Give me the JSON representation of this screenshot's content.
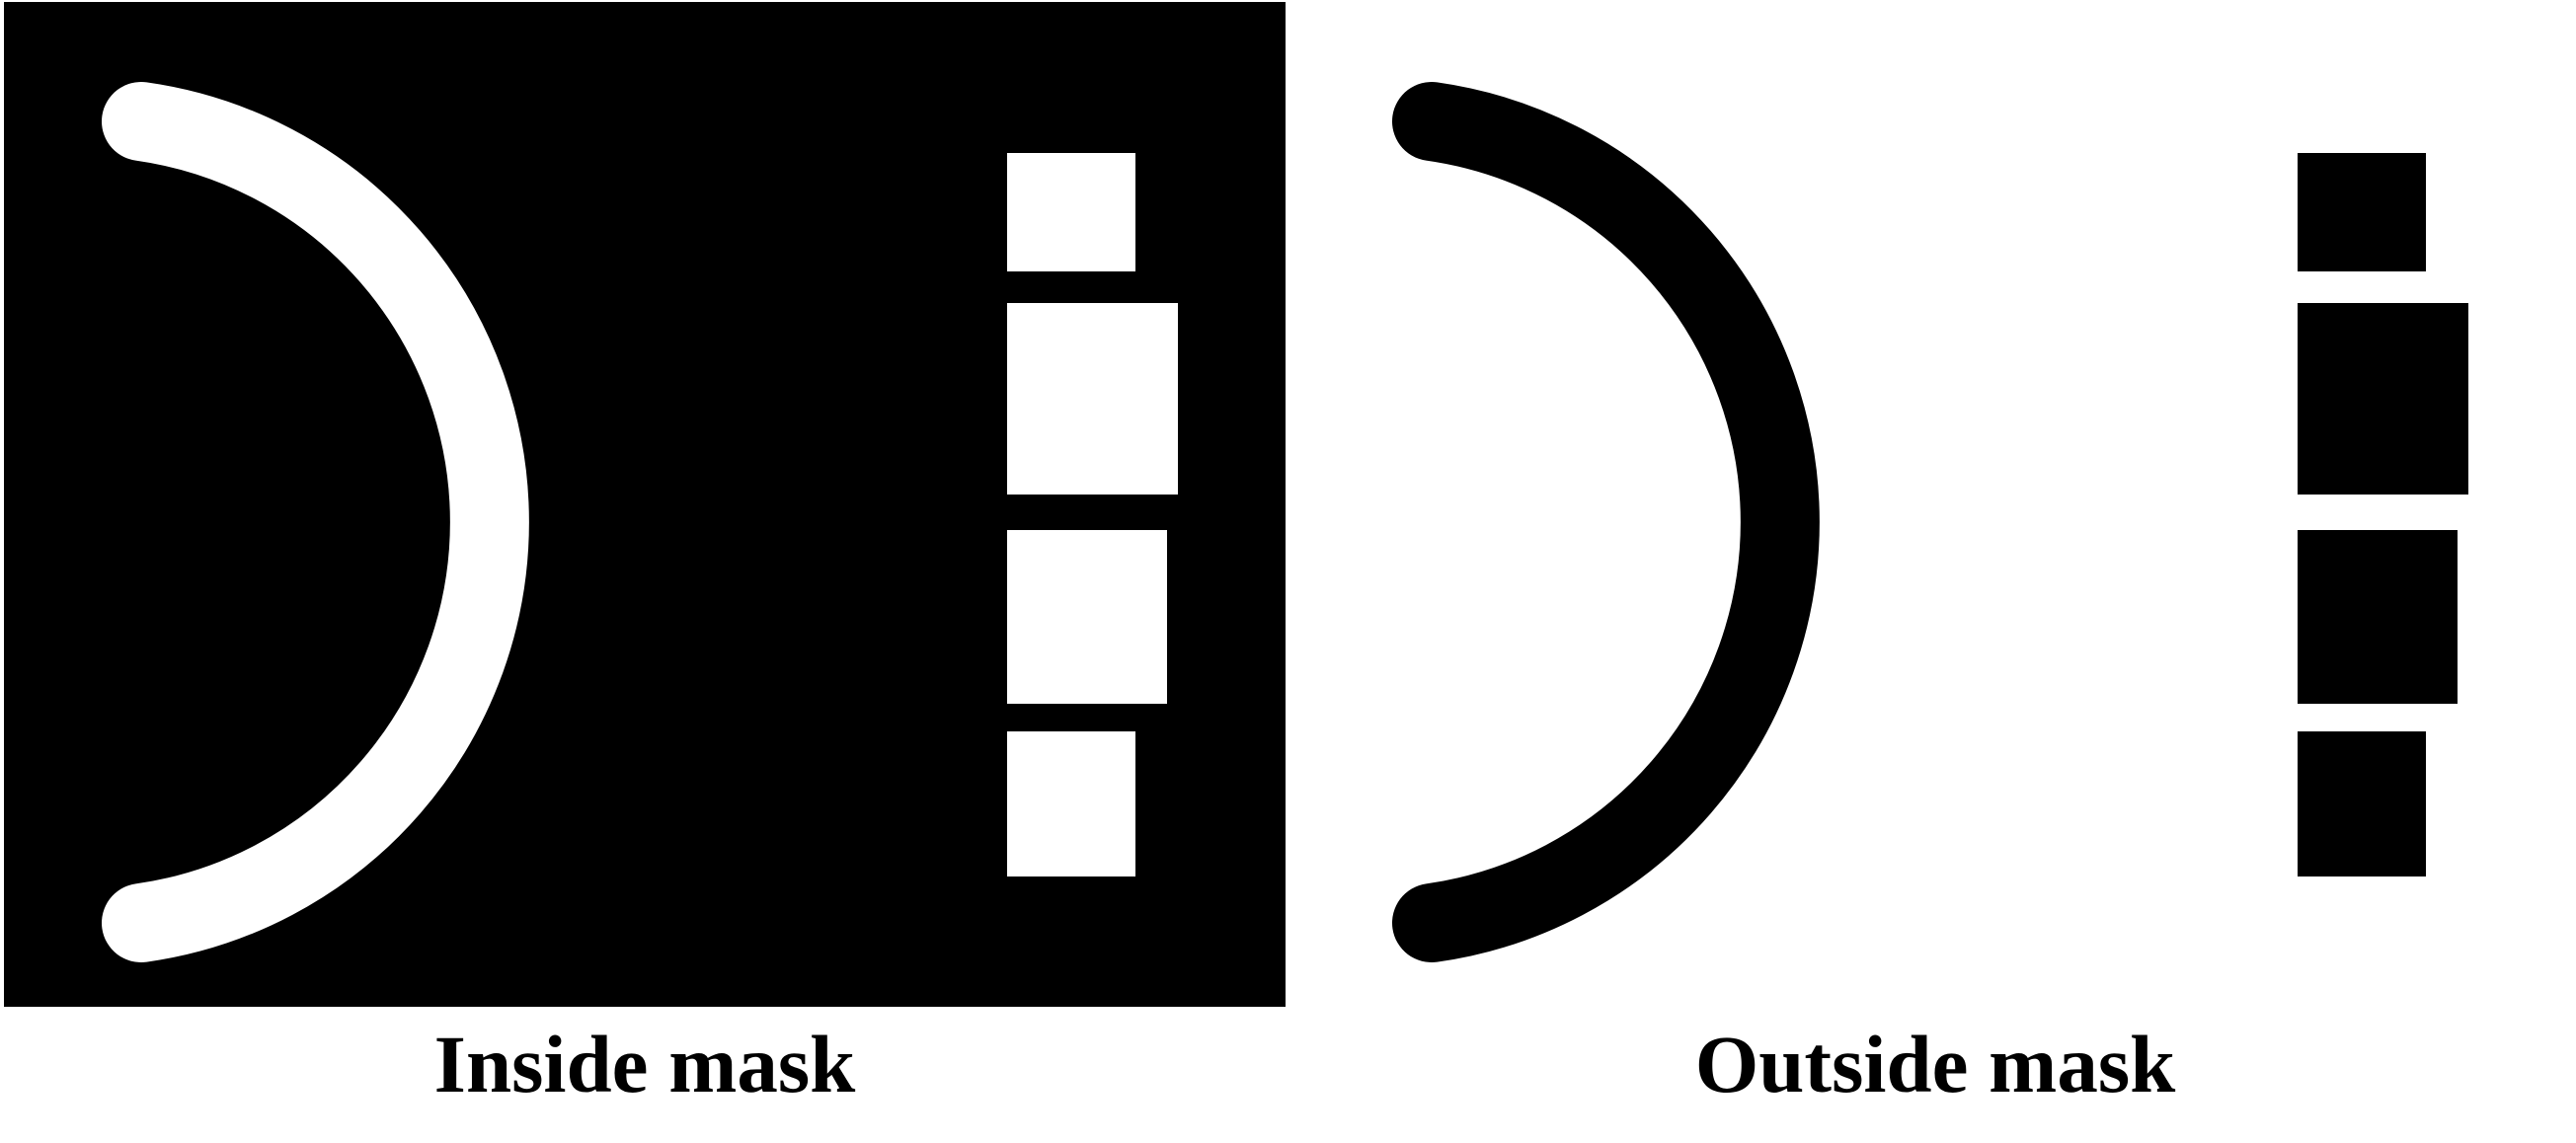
{
  "panels": [
    {
      "caption": "Inside mask",
      "background_color": "#000000",
      "shape_color": "#ffffff"
    },
    {
      "caption": "Outside mask",
      "background_color": "#ffffff",
      "shape_color": "#000000"
    }
  ]
}
